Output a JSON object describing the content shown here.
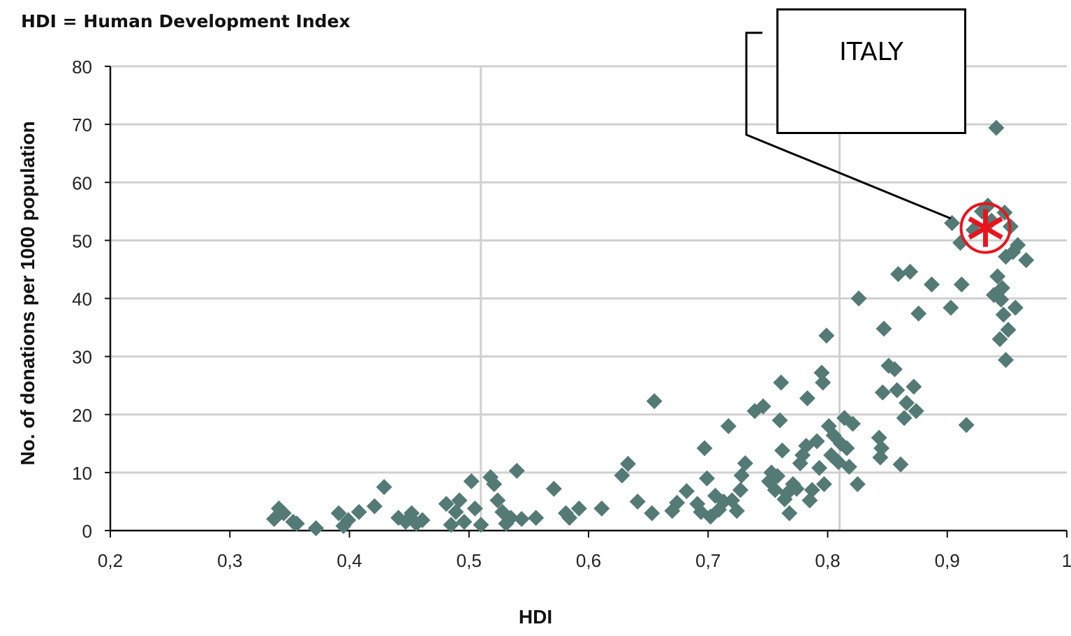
{
  "note": "HDI = Human Development Index",
  "callout": {
    "label": "ITALY",
    "target": {
      "x": 0.932,
      "y": 52.5
    },
    "marker_color": "#e8141c"
  },
  "colors": {
    "point": "#547a76",
    "grid": "#d0d0d0",
    "axis": "#111111",
    "callout_line": "#000000"
  },
  "chart_data": {
    "type": "scatter",
    "xlabel": "HDI",
    "ylabel": "No. of donations per 1000 population",
    "xlim": [
      0.2,
      1.0
    ],
    "ylim": [
      0,
      80
    ],
    "x_ticks": [
      0.2,
      0.3,
      0.4,
      0.5,
      0.6,
      0.7,
      0.8,
      0.9,
      1.0
    ],
    "x_tick_labels": [
      "0,2",
      "0,3",
      "0,4",
      "0,5",
      "0,6",
      "0,7",
      "0,8",
      "0,9",
      "1"
    ],
    "y_ticks": [
      0,
      10,
      20,
      30,
      40,
      50,
      60,
      70,
      80
    ],
    "y_tick_labels": [
      "0",
      "10",
      "20",
      "30",
      "40",
      "50",
      "60",
      "70",
      "80"
    ],
    "grid": true,
    "marker": "diamond",
    "points": [
      [
        0.337,
        2
      ],
      [
        0.341,
        3.8
      ],
      [
        0.345,
        3
      ],
      [
        0.353,
        1.5
      ],
      [
        0.356,
        1.2
      ],
      [
        0.372,
        0.4
      ],
      [
        0.391,
        3
      ],
      [
        0.395,
        0.8
      ],
      [
        0.399,
        1.8
      ],
      [
        0.408,
        3.2
      ],
      [
        0.421,
        4.2
      ],
      [
        0.429,
        7.5
      ],
      [
        0.441,
        2.2
      ],
      [
        0.447,
        1.5
      ],
      [
        0.452,
        3
      ],
      [
        0.456,
        1.2
      ],
      [
        0.461,
        1.8
      ],
      [
        0.481,
        4.6
      ],
      [
        0.485,
        1
      ],
      [
        0.489,
        3.2
      ],
      [
        0.492,
        5.2
      ],
      [
        0.496,
        1.5
      ],
      [
        0.502,
        8.5
      ],
      [
        0.505,
        3.8
      ],
      [
        0.51,
        1
      ],
      [
        0.518,
        9.2
      ],
      [
        0.521,
        8
      ],
      [
        0.524,
        5.2
      ],
      [
        0.528,
        3.2
      ],
      [
        0.531,
        1.2
      ],
      [
        0.535,
        2.2
      ],
      [
        0.54,
        10.3
      ],
      [
        0.544,
        2
      ],
      [
        0.556,
        2.2
      ],
      [
        0.571,
        7.2
      ],
      [
        0.581,
        3
      ],
      [
        0.584,
        2.2
      ],
      [
        0.592,
        3.8
      ],
      [
        0.611,
        3.8
      ],
      [
        0.628,
        9.5
      ],
      [
        0.633,
        11.5
      ],
      [
        0.641,
        5
      ],
      [
        0.653,
        3
      ],
      [
        0.655,
        22.3
      ],
      [
        0.67,
        3.4
      ],
      [
        0.674,
        4.8
      ],
      [
        0.682,
        6.8
      ],
      [
        0.691,
        4.6
      ],
      [
        0.694,
        3.2
      ],
      [
        0.697,
        14.2
      ],
      [
        0.699,
        9
      ],
      [
        0.702,
        2.4
      ],
      [
        0.706,
        6
      ],
      [
        0.709,
        3.6
      ],
      [
        0.713,
        5
      ],
      [
        0.717,
        18
      ],
      [
        0.72,
        5.2
      ],
      [
        0.724,
        3.4
      ],
      [
        0.727,
        7
      ],
      [
        0.731,
        11.6
      ],
      [
        0.728,
        9.5
      ],
      [
        0.739,
        20.6
      ],
      [
        0.746,
        21.4
      ],
      [
        0.751,
        8.5
      ],
      [
        0.753,
        10
      ],
      [
        0.756,
        7
      ],
      [
        0.758,
        9.4
      ],
      [
        0.76,
        19
      ],
      [
        0.761,
        25.5
      ],
      [
        0.762,
        13.8
      ],
      [
        0.764,
        5.4
      ],
      [
        0.766,
        6.4
      ],
      [
        0.768,
        3
      ],
      [
        0.771,
        8
      ],
      [
        0.774,
        7.2
      ],
      [
        0.777,
        11.6
      ],
      [
        0.779,
        13
      ],
      [
        0.782,
        14.6
      ],
      [
        0.783,
        22.8
      ],
      [
        0.785,
        5.2
      ],
      [
        0.787,
        7
      ],
      [
        0.791,
        15.4
      ],
      [
        0.793,
        10.8
      ],
      [
        0.795,
        27.2
      ],
      [
        0.796,
        25.5
      ],
      [
        0.797,
        8
      ],
      [
        0.799,
        33.6
      ],
      [
        0.801,
        18
      ],
      [
        0.803,
        13
      ],
      [
        0.805,
        16.4
      ],
      [
        0.809,
        11.8
      ],
      [
        0.811,
        15
      ],
      [
        0.814,
        19.4
      ],
      [
        0.816,
        14.2
      ],
      [
        0.818,
        11
      ],
      [
        0.821,
        18.4
      ],
      [
        0.825,
        8
      ],
      [
        0.826,
        40
      ],
      [
        0.843,
        16
      ],
      [
        0.845,
        14.2
      ],
      [
        0.844,
        12.6
      ],
      [
        0.846,
        23.8
      ],
      [
        0.847,
        34.8
      ],
      [
        0.851,
        28.4
      ],
      [
        0.856,
        27.8
      ],
      [
        0.858,
        24.2
      ],
      [
        0.859,
        44.2
      ],
      [
        0.861,
        11.4
      ],
      [
        0.864,
        19.4
      ],
      [
        0.866,
        22
      ],
      [
        0.869,
        44.6
      ],
      [
        0.872,
        24.8
      ],
      [
        0.874,
        20.6
      ],
      [
        0.876,
        37.4
      ],
      [
        0.887,
        42.4
      ],
      [
        0.903,
        38.4
      ],
      [
        0.904,
        53
      ],
      [
        0.911,
        49.6
      ],
      [
        0.912,
        42.4
      ],
      [
        0.916,
        18.2
      ],
      [
        0.922,
        51.8
      ],
      [
        0.929,
        55
      ],
      [
        0.934,
        56
      ],
      [
        0.937,
        53.4
      ],
      [
        0.939,
        40.6
      ],
      [
        0.941,
        69.4
      ],
      [
        0.942,
        43.8
      ],
      [
        0.944,
        33
      ],
      [
        0.945,
        39.8
      ],
      [
        0.946,
        41.8
      ],
      [
        0.947,
        37.2
      ],
      [
        0.948,
        54.8
      ],
      [
        0.949,
        47.2
      ],
      [
        0.949,
        29.4
      ],
      [
        0.951,
        34.6
      ],
      [
        0.953,
        52.4
      ],
      [
        0.955,
        48
      ],
      [
        0.957,
        38.4
      ],
      [
        0.959,
        49.2
      ],
      [
        0.966,
        46.6
      ]
    ]
  }
}
